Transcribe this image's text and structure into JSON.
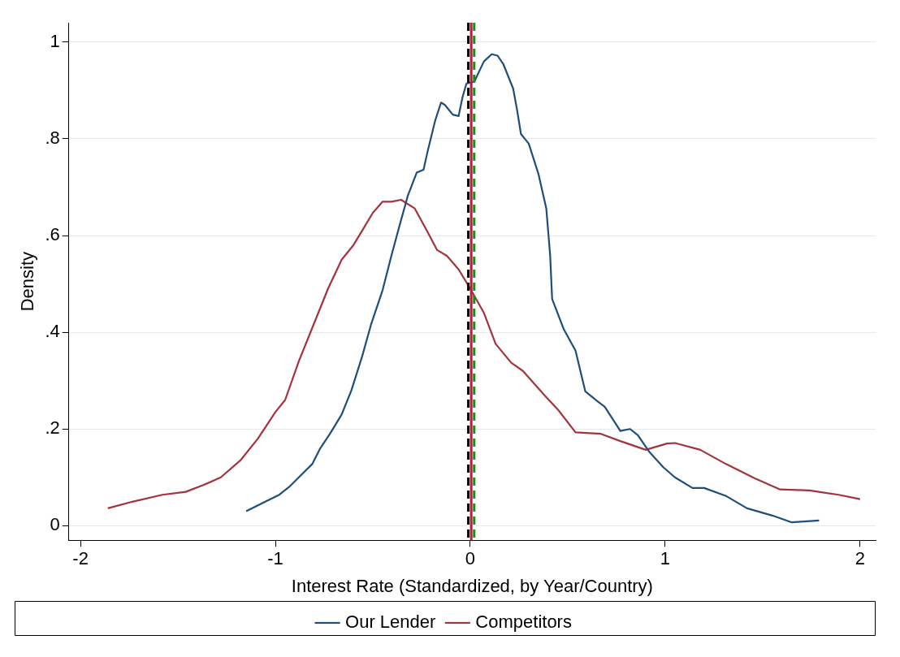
{
  "chart_data": {
    "type": "line",
    "xlabel": "Interest Rate (Standardized, by Year/Country)",
    "ylabel": "Density",
    "xlim": [
      -2.06,
      2.08
    ],
    "xticks": [
      -2,
      -1,
      0,
      1,
      2
    ],
    "ylim": [
      -0.03,
      1.04
    ],
    "yticks": [
      {
        "value": 0,
        "label": "0"
      },
      {
        "value": 0.2,
        "label": ".2"
      },
      {
        "value": 0.4,
        "label": ".4"
      },
      {
        "value": 0.6,
        "label": ".6"
      },
      {
        "value": 0.8,
        "label": ".8"
      },
      {
        "value": 1,
        "label": "1"
      }
    ],
    "grid": "y",
    "legend": "bottom",
    "marker": "none",
    "line_style": "solid",
    "series": [
      {
        "name": "Our Lender",
        "color": "#1f4e79",
        "x": [
          -1.15,
          -1.1,
          -1.05,
          -0.98,
          -0.93,
          -0.88,
          -0.81,
          -0.77,
          -0.72,
          -0.66,
          -0.61,
          -0.555,
          -0.51,
          -0.45,
          -0.405,
          -0.36,
          -0.32,
          -0.275,
          -0.24,
          -0.22,
          -0.18,
          -0.15,
          -0.13,
          -0.09,
          -0.06,
          -0.04,
          -0.02,
          0.02,
          0.07,
          0.11,
          0.14,
          0.17,
          0.22,
          0.24,
          0.26,
          0.3,
          0.35,
          0.39,
          0.41,
          0.42,
          0.48,
          0.54,
          0.59,
          0.65,
          0.69,
          0.77,
          0.82,
          0.86,
          0.92,
          0.99,
          1.05,
          1.14,
          1.2,
          1.31,
          1.42,
          1.55,
          1.65,
          1.79
        ],
        "values": [
          0.03,
          0.04,
          0.05,
          0.064,
          0.08,
          0.1,
          0.128,
          0.16,
          0.19,
          0.23,
          0.28,
          0.35,
          0.415,
          0.487,
          0.558,
          0.625,
          0.683,
          0.73,
          0.736,
          0.772,
          0.838,
          0.875,
          0.87,
          0.85,
          0.847,
          0.886,
          0.914,
          0.918,
          0.96,
          0.975,
          0.972,
          0.954,
          0.904,
          0.86,
          0.81,
          0.79,
          0.727,
          0.656,
          0.558,
          0.469,
          0.406,
          0.362,
          0.278,
          0.258,
          0.246,
          0.196,
          0.2,
          0.187,
          0.152,
          0.121,
          0.1,
          0.078,
          0.078,
          0.062,
          0.036,
          0.021,
          0.007,
          0.011
        ]
      },
      {
        "name": "Competitors",
        "color": "#a3333d",
        "x": [
          -1.86,
          -1.73,
          -1.58,
          -1.46,
          -1.37,
          -1.28,
          -1.18,
          -1.09,
          -1.0,
          -0.95,
          -0.88,
          -0.8,
          -0.73,
          -0.66,
          -0.6,
          -0.555,
          -0.5,
          -0.45,
          -0.405,
          -0.355,
          -0.285,
          -0.22,
          -0.17,
          -0.12,
          -0.06,
          0,
          0.07,
          0.13,
          0.21,
          0.27,
          0.38,
          0.45,
          0.54,
          0.67,
          0.77,
          0.9,
          1.01,
          1.05,
          1.18,
          1.31,
          1.46,
          1.59,
          1.74,
          1.89,
          2.0
        ],
        "values": [
          0.036,
          0.05,
          0.064,
          0.07,
          0.084,
          0.1,
          0.135,
          0.18,
          0.235,
          0.26,
          0.34,
          0.42,
          0.49,
          0.55,
          0.58,
          0.61,
          0.647,
          0.67,
          0.67,
          0.674,
          0.656,
          0.608,
          0.57,
          0.558,
          0.53,
          0.49,
          0.44,
          0.376,
          0.337,
          0.32,
          0.27,
          0.24,
          0.193,
          0.19,
          0.175,
          0.157,
          0.17,
          0.171,
          0.157,
          0.128,
          0.098,
          0.075,
          0.073,
          0.064,
          0.055
        ]
      }
    ],
    "ref_lines": [
      {
        "axis": "x",
        "value": -0.01,
        "color": "#000000",
        "line_style": "dashed"
      },
      {
        "axis": "x",
        "value": 0.005,
        "color": "#c8143c",
        "line_style": "solid"
      },
      {
        "axis": "x",
        "value": 0.02,
        "color": "#1a8a1a",
        "line_style": "dashed"
      }
    ]
  }
}
